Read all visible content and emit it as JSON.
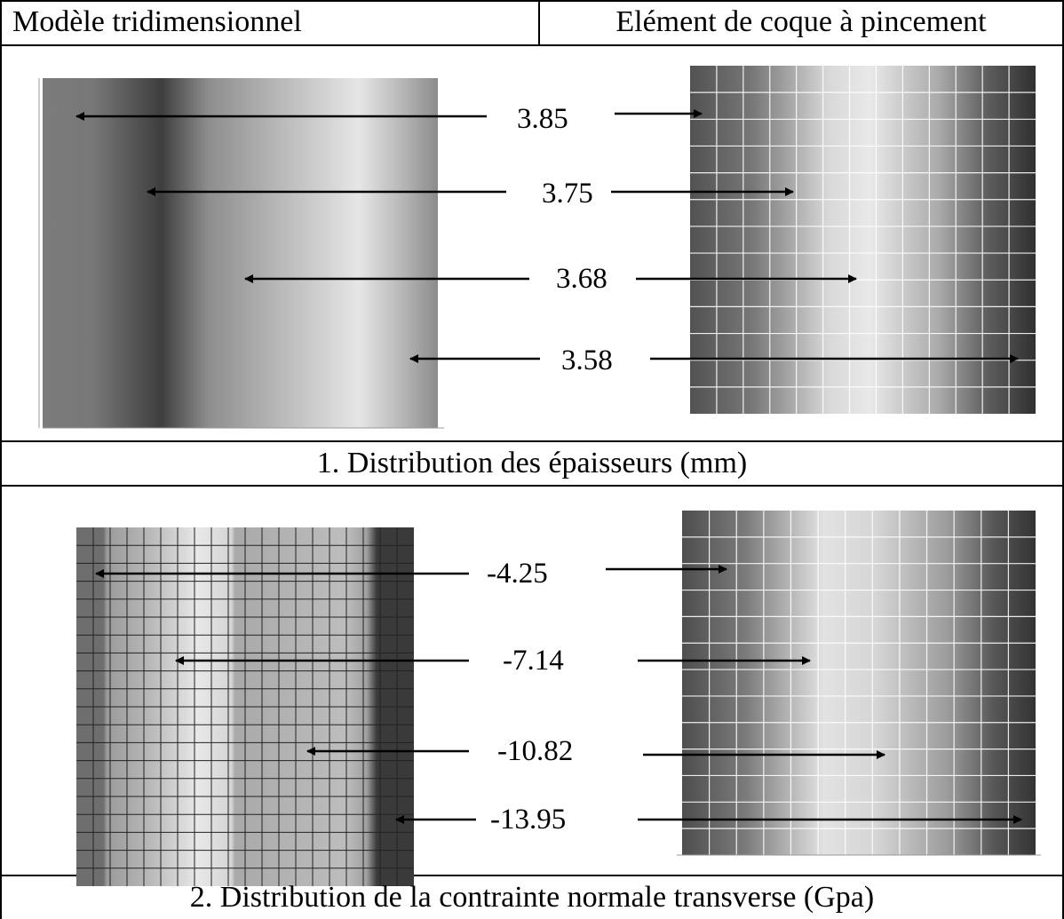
{
  "table": {
    "col_left_header": "Modèle tridimensionnel",
    "col_right_header": "Elément de coque à pincement"
  },
  "section1": {
    "caption": "1. Distribution des épaisseurs (mm)",
    "labels": [
      "3.85",
      "3.75",
      "3.68",
      "3.58"
    ]
  },
  "section2": {
    "caption": "2. Distribution de la contrainte normale transverse (Gpa)",
    "labels": [
      "-4.25",
      "-7.14",
      "-10.82",
      "-13.95"
    ]
  }
}
